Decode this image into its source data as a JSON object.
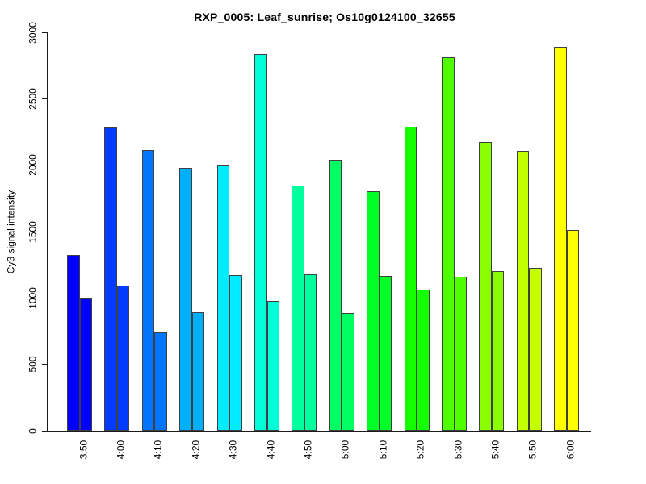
{
  "chart_data": {
    "type": "bar",
    "title": "RXP_0005: Leaf_sunrise; Os10g0124100_32655",
    "xlabel": "",
    "ylabel": "Cy3 signal intensity",
    "ylim": [
      0,
      3000
    ],
    "yticks": [
      0,
      500,
      1000,
      1500,
      2000,
      2500,
      3000
    ],
    "grid": false,
    "legend": "none",
    "background": "#FFFFFF",
    "axis_color": "#1A1A1A",
    "bar_border_color": "#3F3F3F",
    "categories": [
      "3:50",
      "4:00",
      "4:10",
      "4:20",
      "4:30",
      "4:40",
      "4:50",
      "5:00",
      "5:10",
      "5:20",
      "5:30",
      "5:40",
      "5:50",
      "6:00"
    ],
    "series": [
      {
        "name": "bar-1",
        "values": [
          1325,
          2285,
          2115,
          1980,
          2000,
          2835,
          1845,
          2040,
          1805,
          2290,
          2810,
          2175,
          2105,
          2890
        ]
      },
      {
        "name": "bar-2",
        "values": [
          995,
          1095,
          740,
          895,
          1170,
          980,
          1180,
          885,
          1165,
          1060,
          1160,
          1205,
          1225,
          1510
        ]
      }
    ],
    "bar_colors_by_category": [
      "#0000FF",
      "#003BFF",
      "#0076FF",
      "#00B0FF",
      "#00EBFF",
      "#00FFD8",
      "#00FF9D",
      "#00FF62",
      "#00FF27",
      "#14FF00",
      "#4FFF00",
      "#89FF00",
      "#C4FF00",
      "#FFFF00"
    ]
  }
}
